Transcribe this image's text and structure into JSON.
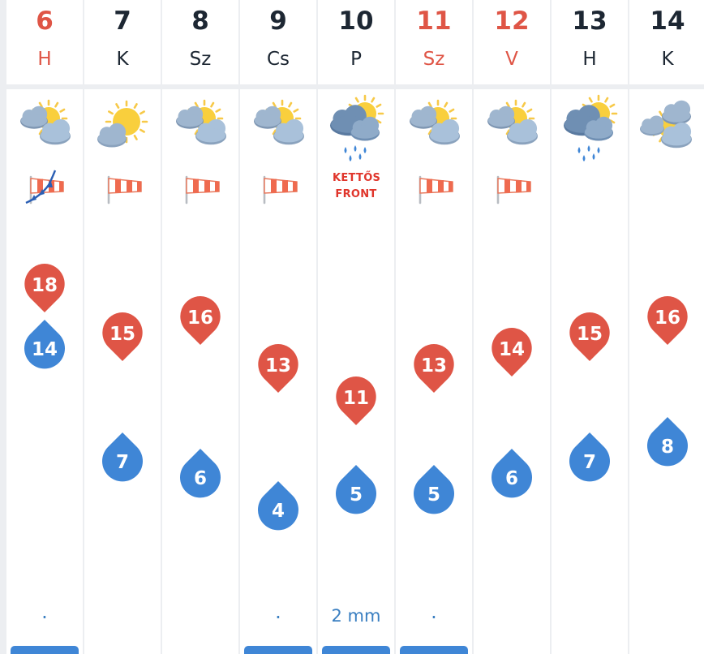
{
  "scale": {
    "max_temp": 18,
    "min_temp": 4
  },
  "colors": {
    "high": "#df5546",
    "low": "#3f86d6",
    "sunday": "#df5546",
    "text": "#1d2733",
    "precip": "#3a7fc1"
  },
  "days": [
    {
      "num": "6",
      "name": "H",
      "red": true,
      "weather": "partly-cloudy-icon",
      "wind": "cold-front-wind-icon",
      "high": 18,
      "low": 14,
      "precip": ".",
      "precip_bar": 1
    },
    {
      "num": "7",
      "name": "K",
      "red": false,
      "weather": "sunny-cloud-icon",
      "wind": "windsock-icon",
      "high": 15,
      "low": 7,
      "precip": "",
      "precip_bar": 0
    },
    {
      "num": "8",
      "name": "Sz",
      "red": false,
      "weather": "partly-cloudy-icon",
      "wind": "windsock-icon",
      "high": 16,
      "low": 6,
      "precip": "",
      "precip_bar": 0
    },
    {
      "num": "9",
      "name": "Cs",
      "red": false,
      "weather": "partly-cloudy-icon",
      "wind": "windsock-icon",
      "high": 13,
      "low": 4,
      "precip": ".",
      "precip_bar": 1
    },
    {
      "num": "10",
      "name": "P",
      "red": false,
      "weather": "rain-cloud-icon",
      "front": "KETTŐS FRONT",
      "high": 11,
      "low": 5,
      "precip": "2 mm",
      "precip_bar": 1
    },
    {
      "num": "11",
      "name": "Sz",
      "red": true,
      "weather": "partly-cloudy-icon",
      "wind": "windsock-icon",
      "high": 13,
      "low": 5,
      "precip": ".",
      "precip_bar": 1
    },
    {
      "num": "12",
      "name": "V",
      "red": true,
      "weather": "partly-cloudy-icon",
      "wind": "windsock-icon",
      "high": 14,
      "low": 6,
      "precip": "",
      "precip_bar": 0
    },
    {
      "num": "13",
      "name": "H",
      "red": false,
      "weather": "rain-cloud-icon",
      "high": 15,
      "low": 7,
      "precip": "",
      "precip_bar": 0
    },
    {
      "num": "14",
      "name": "K",
      "red": false,
      "weather": "cloudy-sun-icon",
      "high": 16,
      "low": 8,
      "precip": "",
      "precip_bar": 0
    }
  ]
}
